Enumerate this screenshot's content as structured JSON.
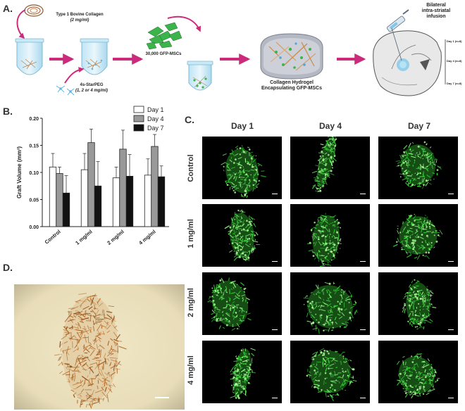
{
  "panel_a": {
    "letter": "A.",
    "collagen_title": "Type 1 Bovine Collagen",
    "collagen_conc": "(2 mg/ml)",
    "starpeg_title": "4s-StarPEG",
    "starpeg_conc": "(1, 2 or 4 mg/ml)",
    "cells_label": "30,000 GFP-MSCs",
    "hydrogel_label_1": "Collagen Hydrogel",
    "hydrogel_label_2": "Encapsulating GFP-MSCs",
    "infusion_label_1": "Bilateral",
    "infusion_label_2": "intra-striatal",
    "infusion_label_3": "infusion",
    "timepoints": [
      "Day 1 (n=8)",
      "Day 4 (n=8)",
      "Day 7 (n=8)"
    ],
    "colors": {
      "arrow": "#cc2a7a",
      "cells": "#3cb44b",
      "tube_liquid": "#9fd6ee"
    }
  },
  "panel_b": {
    "letter": "B.",
    "chart_data": {
      "type": "bar",
      "categories": [
        "Control",
        "1 mg/ml",
        "2 mg/ml",
        "4 mg/ml"
      ],
      "series": [
        {
          "name": "Day 1",
          "color": "#ffffff",
          "values": [
            0.11,
            0.105,
            0.09,
            0.095
          ],
          "errors": [
            0.025,
            0.03,
            0.02,
            0.03
          ]
        },
        {
          "name": "Day 4",
          "color": "#999999",
          "values": [
            0.098,
            0.155,
            0.143,
            0.148
          ],
          "errors": [
            0.012,
            0.025,
            0.035,
            0.022
          ]
        },
        {
          "name": "Day 7",
          "color": "#111111",
          "values": [
            0.062,
            0.075,
            0.093,
            0.092
          ],
          "errors": [
            0.032,
            0.045,
            0.04,
            0.02
          ]
        }
      ],
      "ylabel": "Graft Volume (mm³)",
      "ylim": [
        0,
        0.2
      ],
      "yticks": [
        "0.00",
        "0.05",
        "0.10",
        "0.15",
        "0.20"
      ],
      "legend": "top-right"
    }
  },
  "panel_c": {
    "letter": "C.",
    "days": [
      "Day  1",
      "Day  4",
      "Day  7"
    ],
    "rows": [
      "Control",
      "1 mg/ml",
      "2 mg/ml",
      "4 mg/ml"
    ],
    "fluor_color": "#3ddc3d"
  },
  "panel_d": {
    "letter": "D.",
    "stain_color": "#b5651d",
    "background_color": "#e8ddb8"
  }
}
